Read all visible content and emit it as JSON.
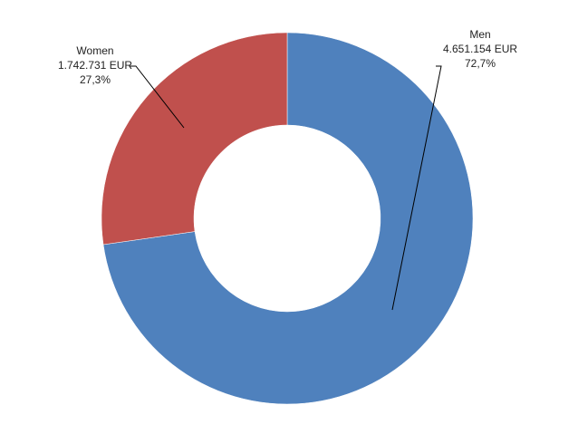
{
  "chart_data": {
    "type": "pie",
    "variant": "donut",
    "unit": "EUR",
    "slices": [
      {
        "name": "Men",
        "value": 4651154,
        "value_label": "4.651.154 EUR",
        "percent": 72.7,
        "percent_label": "72,7%",
        "color": "#4F81BD"
      },
      {
        "name": "Women",
        "value": 1742731,
        "value_label": "1.742.731 EUR",
        "percent": 27.3,
        "percent_label": "27,3%",
        "color": "#C0504D"
      }
    ],
    "start_angle": "top",
    "direction": "clockwise"
  }
}
